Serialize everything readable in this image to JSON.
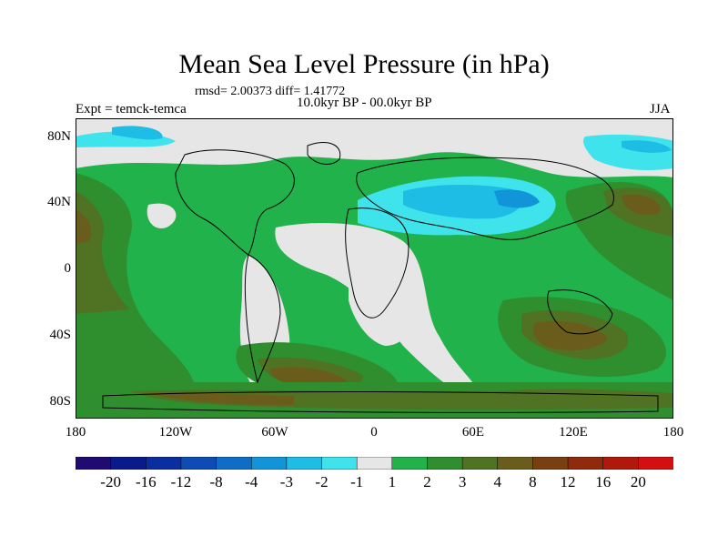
{
  "plot": {
    "title": "Mean Sea Level Pressure (in hPa)",
    "stats": "rmsd= 2.00373 diff= 1.41772",
    "experiment": "Expt = temck-temca",
    "period": "10.0kyr BP - 00.0kyr BP",
    "season": "JJA"
  },
  "axes": {
    "lat_labels": [
      "80N",
      "40N",
      "0",
      "40S",
      "80S"
    ],
    "lon_labels": [
      "180",
      "120W",
      "60W",
      "0",
      "60E",
      "120E",
      "180"
    ]
  },
  "colorbar": {
    "levels": [
      "-20",
      "-16",
      "-12",
      "-8",
      "-4",
      "-3",
      "-2",
      "-1",
      "1",
      "2",
      "3",
      "4",
      "8",
      "12",
      "16",
      "20"
    ],
    "colors": [
      "#1f0b72",
      "#0b1a8a",
      "#0a2da0",
      "#0c4cb4",
      "#0f6dc6",
      "#1195d8",
      "#1ebde6",
      "#3ee3ec",
      "#e6e6e6",
      "#22b24c",
      "#2f8f2f",
      "#4f7322",
      "#6a5c1b",
      "#7a3f10",
      "#8f2a0c",
      "#b0180a",
      "#d40f0f"
    ]
  },
  "colors": {
    "land_outline": "#000000",
    "neutral": "#e6e6e6",
    "green": "#22b24c",
    "dark_green": "#2f8f2f",
    "olive": "#4f7322",
    "brown": "#6a5c1b",
    "cyan": "#3ee3ec",
    "light_blue": "#1ebde6",
    "blue": "#1195d8"
  }
}
